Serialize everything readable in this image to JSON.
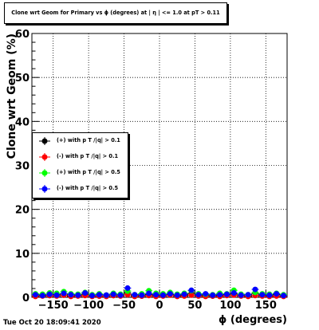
{
  "chart_data": {
    "type": "scatter",
    "title": "Clone wrt Geom for Primary vs ϕ (degrees) at | η | <= 1.0 at pT > 0.11",
    "xlabel": "ϕ (degrees)",
    "ylabel": "Clone wrt Geom (%)",
    "xlim": [
      -180,
      180
    ],
    "ylim": [
      0,
      60
    ],
    "xticks": [
      -150,
      -100,
      -50,
      0,
      50,
      100,
      150
    ],
    "yticks": [
      0,
      10,
      20,
      30,
      40,
      50,
      60
    ],
    "grid": true,
    "legend_position": "center-left",
    "x": [
      -175,
      -165,
      -155,
      -145,
      -135,
      -125,
      -115,
      -105,
      -95,
      -85,
      -75,
      -65,
      -55,
      -45,
      -35,
      -25,
      -15,
      -5,
      5,
      15,
      25,
      35,
      45,
      55,
      65,
      75,
      85,
      95,
      105,
      115,
      125,
      135,
      145,
      155,
      165,
      175
    ],
    "series": [
      {
        "name": "(+) with p T /|q| > 0.1",
        "color": "#000000",
        "values": [
          0.3,
          0.5,
          0.4,
          0.6,
          0.5,
          0.3,
          0.4,
          0.7,
          0.4,
          0.3,
          0.5,
          0.4,
          0.6,
          1.0,
          0.5,
          0.3,
          0.6,
          0.4,
          0.5,
          0.7,
          0.4,
          0.5,
          0.9,
          0.4,
          0.5,
          0.3,
          0.4,
          0.6,
          0.8,
          0.4,
          0.3,
          0.9,
          0.5,
          0.4,
          0.6,
          0.3
        ]
      },
      {
        "name": "(-) with p T /|q| > 0.1",
        "color": "#ff0000",
        "values": [
          0.2,
          0.3,
          0.4,
          0.3,
          0.5,
          0.2,
          0.3,
          0.4,
          0.2,
          0.3,
          0.2,
          0.4,
          0.3,
          0.6,
          0.2,
          0.3,
          0.4,
          0.2,
          0.3,
          0.5,
          0.2,
          0.3,
          0.5,
          0.3,
          0.2,
          0.3,
          0.2,
          0.4,
          0.5,
          0.3,
          0.2,
          0.4,
          0.3,
          0.2,
          0.3,
          0.2
        ]
      },
      {
        "name": "(+) with p T /|q| > 0.5",
        "color": "#00ff00",
        "values": [
          0.8,
          0.7,
          1.0,
          0.9,
          1.3,
          0.8,
          0.7,
          1.1,
          0.6,
          0.8,
          0.5,
          0.9,
          0.7,
          1.4,
          0.6,
          0.8,
          1.5,
          0.9,
          0.8,
          1.1,
          0.7,
          0.9,
          1.5,
          0.8,
          0.7,
          0.6,
          0.9,
          0.8,
          1.6,
          0.7,
          0.6,
          1.1,
          0.8,
          0.7,
          0.9,
          0.6
        ]
      },
      {
        "name": "(-) with p T /|q| > 0.5",
        "color": "#0000ff",
        "values": [
          0.6,
          0.4,
          0.7,
          0.5,
          0.9,
          0.6,
          0.5,
          1.0,
          0.4,
          0.6,
          0.5,
          0.7,
          0.5,
          2.1,
          0.6,
          0.5,
          0.9,
          0.6,
          0.5,
          0.8,
          0.5,
          0.7,
          1.6,
          0.6,
          0.8,
          0.5,
          0.6,
          0.7,
          1.0,
          0.5,
          0.6,
          1.8,
          0.6,
          0.5,
          0.8,
          0.4
        ]
      }
    ]
  },
  "datestamp": "Tue Oct 20 18:09:41 2020"
}
